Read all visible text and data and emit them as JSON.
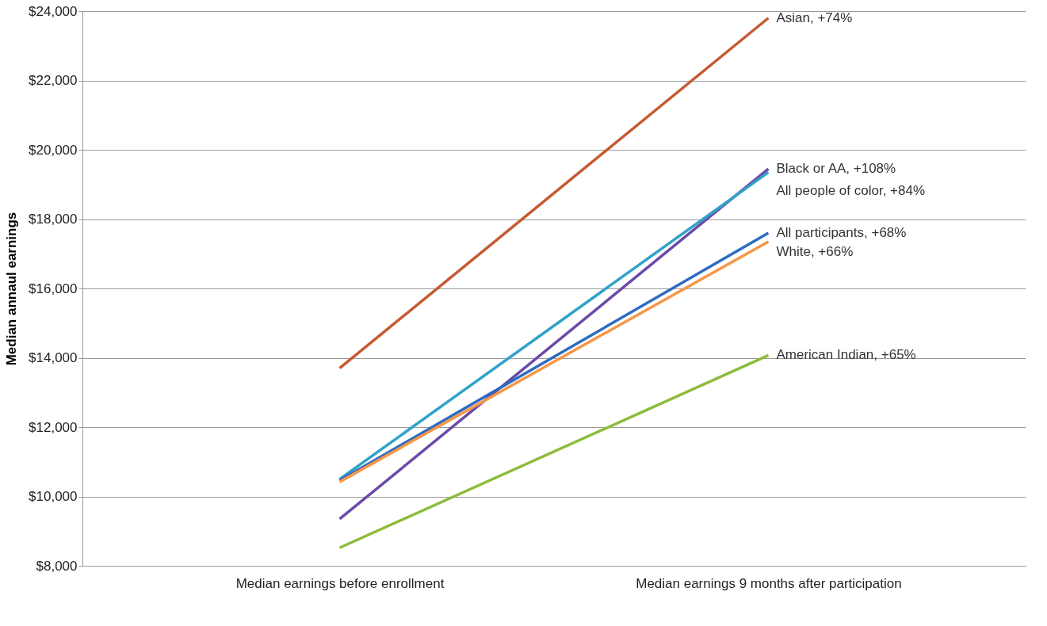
{
  "chart_data": {
    "type": "line",
    "ylabel": "Median annaul earnings",
    "categories": [
      "Median earnings before enrollment",
      "Median earnings 9 months after participation"
    ],
    "ylim": [
      8000,
      24000
    ],
    "yticks": [
      {
        "value": 8000,
        "label": "$8,000"
      },
      {
        "value": 10000,
        "label": "$10,000"
      },
      {
        "value": 12000,
        "label": "$12,000"
      },
      {
        "value": 14000,
        "label": "$14,000"
      },
      {
        "value": 16000,
        "label": "$16,000"
      },
      {
        "value": 18000,
        "label": "$18,000"
      },
      {
        "value": 20000,
        "label": "$20,000"
      },
      {
        "value": 22000,
        "label": "$22,000"
      },
      {
        "value": 24000,
        "label": "$24,000"
      }
    ],
    "grid": "y",
    "marker": "none",
    "line_style": "solid",
    "series": [
      {
        "name": "Asian, +74%",
        "color": "#c55a32",
        "values": [
          13700,
          23800
        ]
      },
      {
        "name": "Black or AA, +108%",
        "color": "#6a4aa8",
        "values": [
          9350,
          19450
        ]
      },
      {
        "name": "All people of color, +84%",
        "color": "#31a2c9",
        "values": [
          10500,
          19350
        ]
      },
      {
        "name": "All participants, +68%",
        "color": "#2e6bc0",
        "values": [
          10460,
          17600
        ]
      },
      {
        "name": "White, +66%",
        "color": "#f79646",
        "values": [
          10420,
          17350
        ]
      },
      {
        "name": "American Indian, +65%",
        "color": "#8dbb3a",
        "values": [
          8520,
          14070
        ]
      }
    ]
  }
}
